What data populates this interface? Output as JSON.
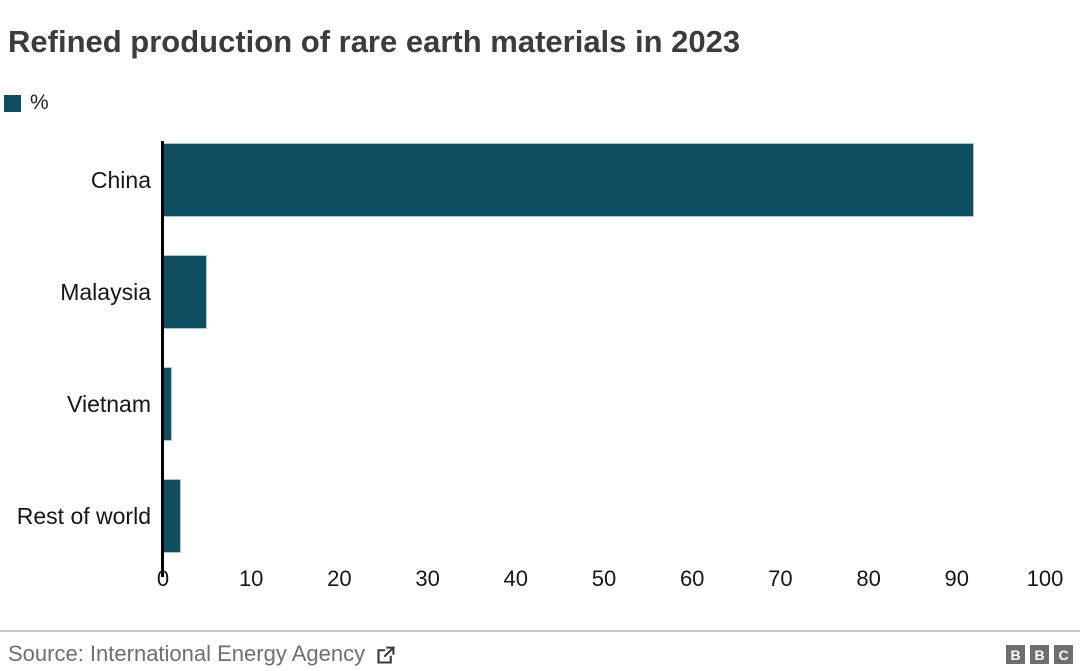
{
  "title": "Refined production of rare earth materials in 2023",
  "legend": {
    "label": "%"
  },
  "chart_data": {
    "type": "bar",
    "orientation": "horizontal",
    "title": "Refined production of rare earth materials in 2023",
    "categories": [
      "China",
      "Malaysia",
      "Vietnam",
      "Rest of world"
    ],
    "values": [
      92,
      5,
      1,
      2
    ],
    "unit": "%",
    "xlabel": "",
    "ylabel": "",
    "xlim": [
      0,
      100
    ],
    "x_ticks": [
      0,
      10,
      20,
      30,
      40,
      50,
      60,
      70,
      80,
      90,
      100
    ],
    "grid": false,
    "legend_position": "top-left",
    "bar_color": "#0d4f60",
    "axis_line_color": "#000000"
  },
  "footer": {
    "source": "Source: International Energy Agency",
    "logo_letters": [
      "B",
      "B",
      "C"
    ]
  },
  "colors": {
    "bar": "#0d4f60",
    "title_text": "#3c3c3c",
    "label_text": "#161616",
    "source_text": "#6f6f6f",
    "icon": "#3a3a3a",
    "divider": "#c7c7c7",
    "logo_bg": "#6e6e73"
  }
}
